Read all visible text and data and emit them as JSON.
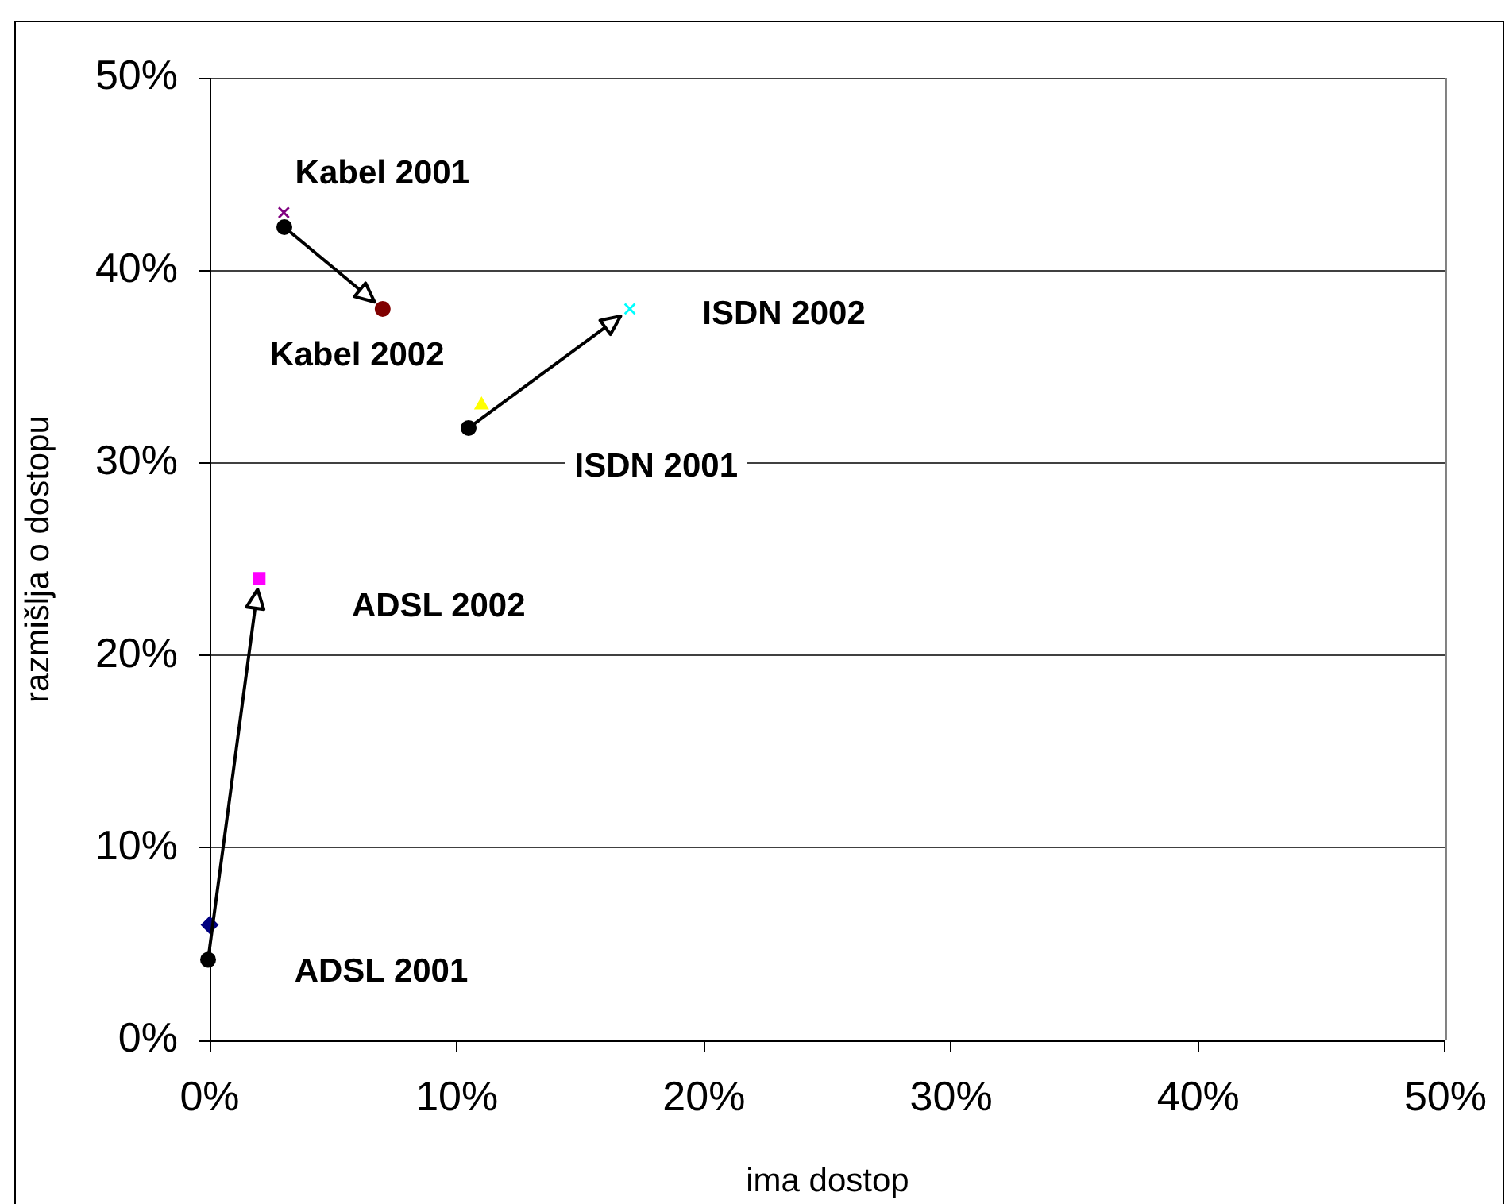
{
  "chart_data": {
    "type": "scatter",
    "xlabel": "ima dostop",
    "ylabel": "razmišlja o dostopu",
    "xlim": [
      0,
      50
    ],
    "ylim": [
      0,
      50
    ],
    "xticks": [
      {
        "value": 0,
        "label": "0%"
      },
      {
        "value": 10,
        "label": "10%"
      },
      {
        "value": 20,
        "label": "20%"
      },
      {
        "value": 30,
        "label": "30%"
      },
      {
        "value": 40,
        "label": "40%"
      },
      {
        "value": 50,
        "label": "50%"
      }
    ],
    "yticks": [
      {
        "value": 0,
        "label": "0%"
      },
      {
        "value": 10,
        "label": "10%"
      },
      {
        "value": 20,
        "label": "20%"
      },
      {
        "value": 30,
        "label": "30%"
      },
      {
        "value": 40,
        "label": "40%"
      },
      {
        "value": 50,
        "label": "50%"
      }
    ],
    "grid": "y",
    "legend": false,
    "series": [
      {
        "name": "ADSL 2001",
        "color": "#000080",
        "marker": "diamond",
        "x": [
          0
        ],
        "values": [
          6
        ]
      },
      {
        "name": "ADSL 2002",
        "color": "#ff00ff",
        "marker": "square",
        "x": [
          2
        ],
        "values": [
          24
        ]
      },
      {
        "name": "ISDN 2001",
        "color": "#ffff00",
        "marker": "triangle",
        "x": [
          11
        ],
        "values": [
          33
        ]
      },
      {
        "name": "ISDN 2002",
        "color": "#00ffff",
        "marker": "cross",
        "x": [
          17
        ],
        "values": [
          38
        ]
      },
      {
        "name": "Kabel 2001",
        "color": "#800080",
        "marker": "cross",
        "x": [
          3
        ],
        "values": [
          43
        ]
      },
      {
        "name": "Kabel 2002",
        "color": "#800000",
        "marker": "circle",
        "x": [
          7
        ],
        "values": [
          38
        ]
      }
    ]
  }
}
